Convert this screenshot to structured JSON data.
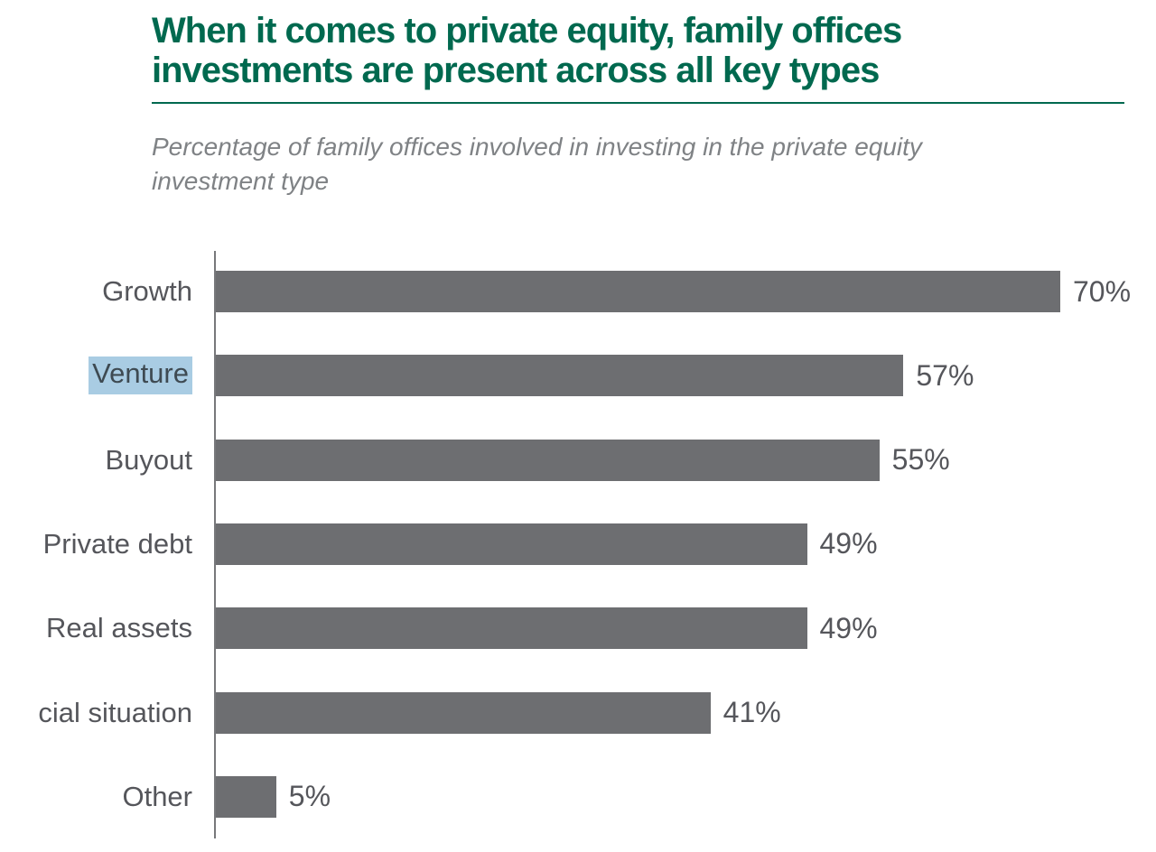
{
  "header": {
    "title_lines": [
      "When it comes to private equity, family offices",
      "investments are present across all key types"
    ],
    "subtitle_lines": [
      "Percentage of family offices involved in investing in the private equity",
      "investment type"
    ]
  },
  "chart_data": {
    "type": "bar",
    "orientation": "horizontal",
    "title": "When it comes to private equity, family offices investments are present across all key types",
    "subtitle": "Percentage of family offices involved in investing in the private equity investment type",
    "categories": [
      "Growth",
      "Venture",
      "Buyout",
      "Private debt",
      "Real assets",
      "cial situation",
      "Other"
    ],
    "values": [
      70,
      57,
      55,
      49,
      49,
      41,
      5
    ],
    "value_labels": [
      "70%",
      "57%",
      "55%",
      "49%",
      "49%",
      "41%",
      "5%"
    ],
    "highlighted_category": "Venture",
    "xlabel": "",
    "ylabel": "",
    "xlim": [
      0,
      70
    ],
    "grid": false,
    "legend": null,
    "data_label_position": "outside-end"
  },
  "colors": {
    "title_green": "#00694f",
    "subtitle_gray": "#7f8285",
    "bar_gray": "#6d6e71",
    "label_gray": "#55565b",
    "axis_gray": "#77787b",
    "highlight_blue": "#a9cce3"
  }
}
